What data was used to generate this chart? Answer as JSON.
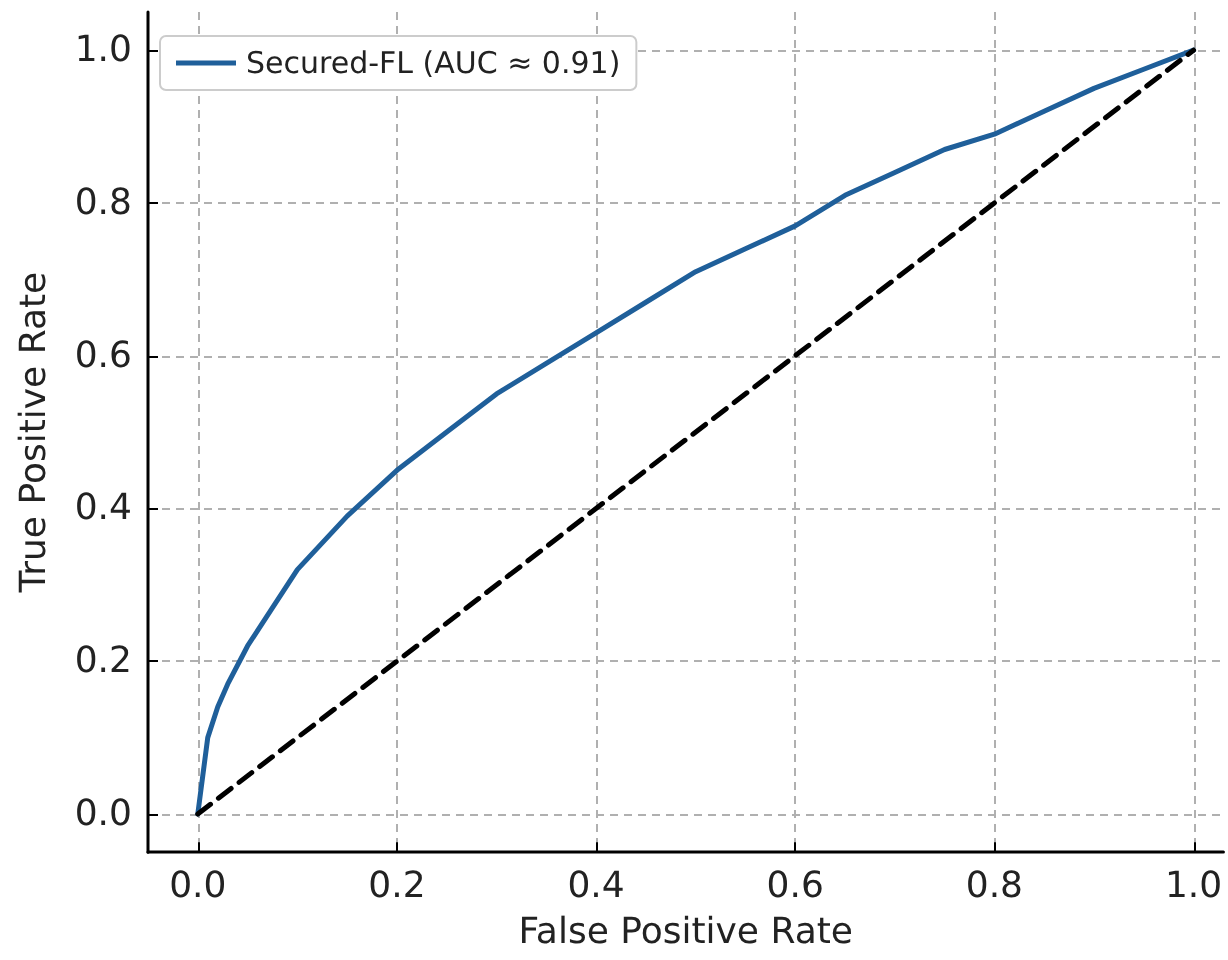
{
  "chart_data": {
    "type": "line",
    "xlabel": "False Positive Rate",
    "ylabel": "True Positive Rate",
    "xlim": [
      -0.05,
      1.03
    ],
    "ylim": [
      -0.05,
      1.05
    ],
    "xticks": [
      {
        "value": 0,
        "label": "0.0"
      },
      0.2,
      0.4,
      0.6,
      0.8,
      {
        "value": 1,
        "label": "1.0"
      }
    ],
    "yticks": [
      {
        "value": 0,
        "label": "0.0"
      },
      0.2,
      0.4,
      0.6,
      0.8,
      {
        "value": 1,
        "label": "1.0"
      }
    ],
    "grid": true,
    "legend": "top left",
    "marker": "none",
    "series": [
      {
        "name": "Secured-FL (AUC ≈ 0.91)",
        "color": "#1f5f9a",
        "line_style": "solid",
        "x": [
          0,
          0.01,
          0.02,
          0.03,
          0.05,
          0.07,
          0.1,
          0.15,
          0.2,
          0.25,
          0.3,
          0.35,
          0.4,
          0.45,
          0.5,
          0.55,
          0.6,
          0.65,
          0.7,
          0.75,
          0.8,
          0.85,
          0.9,
          0.95,
          1.0
        ],
        "values": [
          0,
          0.1,
          0.14,
          0.17,
          0.22,
          0.26,
          0.32,
          0.39,
          0.45,
          0.5,
          0.55,
          0.59,
          0.63,
          0.67,
          0.71,
          0.74,
          0.77,
          0.81,
          0.84,
          0.87,
          0.89,
          0.92,
          0.95,
          0.975,
          1.0
        ]
      },
      {
        "color": "#000000",
        "line_style": "dashed",
        "x": [
          0,
          1.0
        ],
        "values": [
          0,
          1.0
        ]
      }
    ]
  }
}
